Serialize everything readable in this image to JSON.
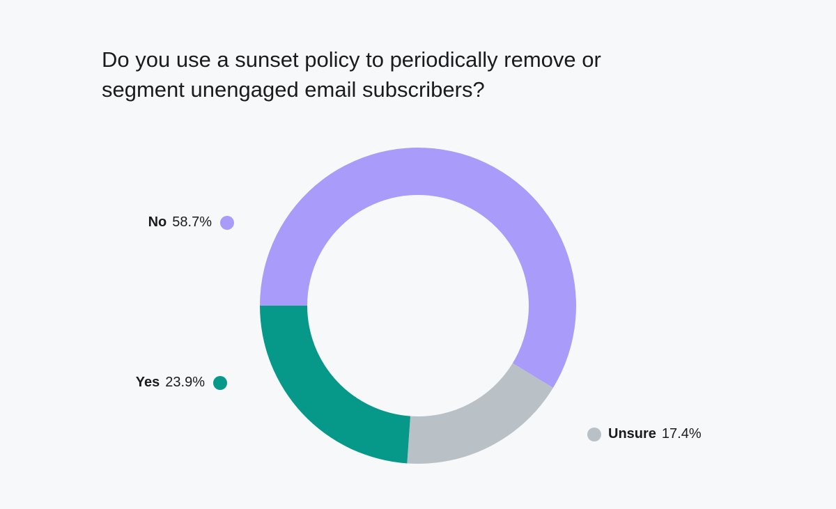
{
  "chart_data": {
    "type": "pie",
    "variant": "donut",
    "title_lines": [
      "Do you use a sunset policy to periodically remove or",
      "segment unengaged email subscribers?"
    ],
    "slices": [
      {
        "label": "No",
        "value": 58.7,
        "value_label": "58.7%",
        "color": "#a99bf9"
      },
      {
        "label": "Unsure",
        "value": 17.4,
        "value_label": "17.4%",
        "color": "#b9c1c7"
      },
      {
        "label": "Yes",
        "value": 23.9,
        "value_label": "23.9%",
        "color": "#06998a"
      }
    ],
    "unit": "%",
    "legend": "labels beside the donut"
  },
  "colors": {
    "background": "#f7f8fa",
    "no": "#a99bf9",
    "unsure": "#b9c1c7",
    "yes": "#06998a"
  }
}
